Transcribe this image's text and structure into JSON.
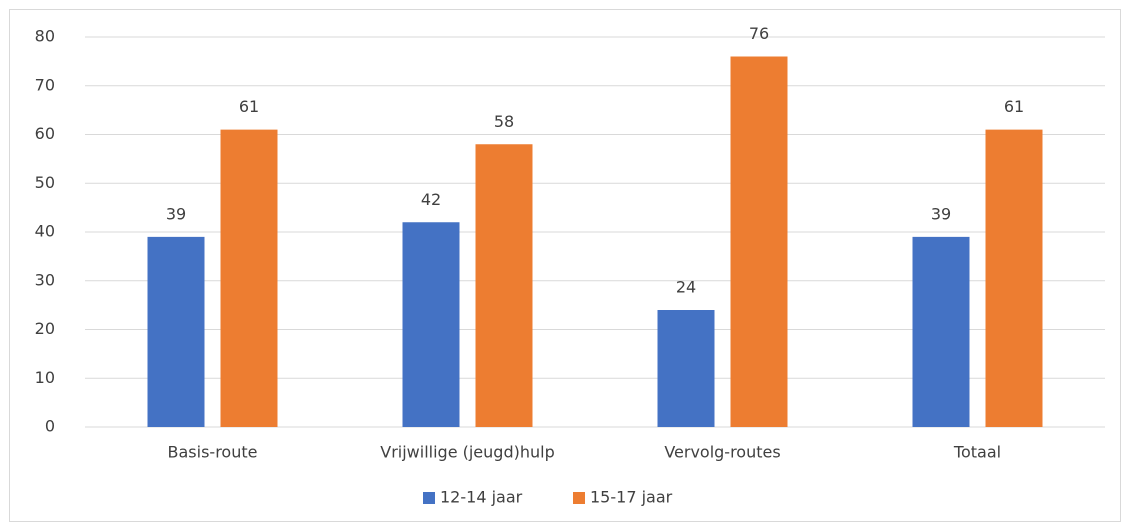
{
  "chart_data": {
    "type": "bar",
    "categories": [
      "Basis-route",
      "Vrijwillige (jeugd)hulp",
      "Vervolg-routes",
      "Totaal"
    ],
    "series": [
      {
        "name": "12-14 jaar",
        "color": "#4472c4",
        "values": [
          39,
          42,
          24,
          39
        ]
      },
      {
        "name": "15-17 jaar",
        "color": "#ed7d31",
        "values": [
          61,
          58,
          76,
          61
        ]
      }
    ],
    "ylim": [
      0,
      80
    ],
    "yticks": [
      0,
      10,
      20,
      30,
      40,
      50,
      60,
      70,
      80
    ],
    "grid": true,
    "legend": "bottom"
  }
}
